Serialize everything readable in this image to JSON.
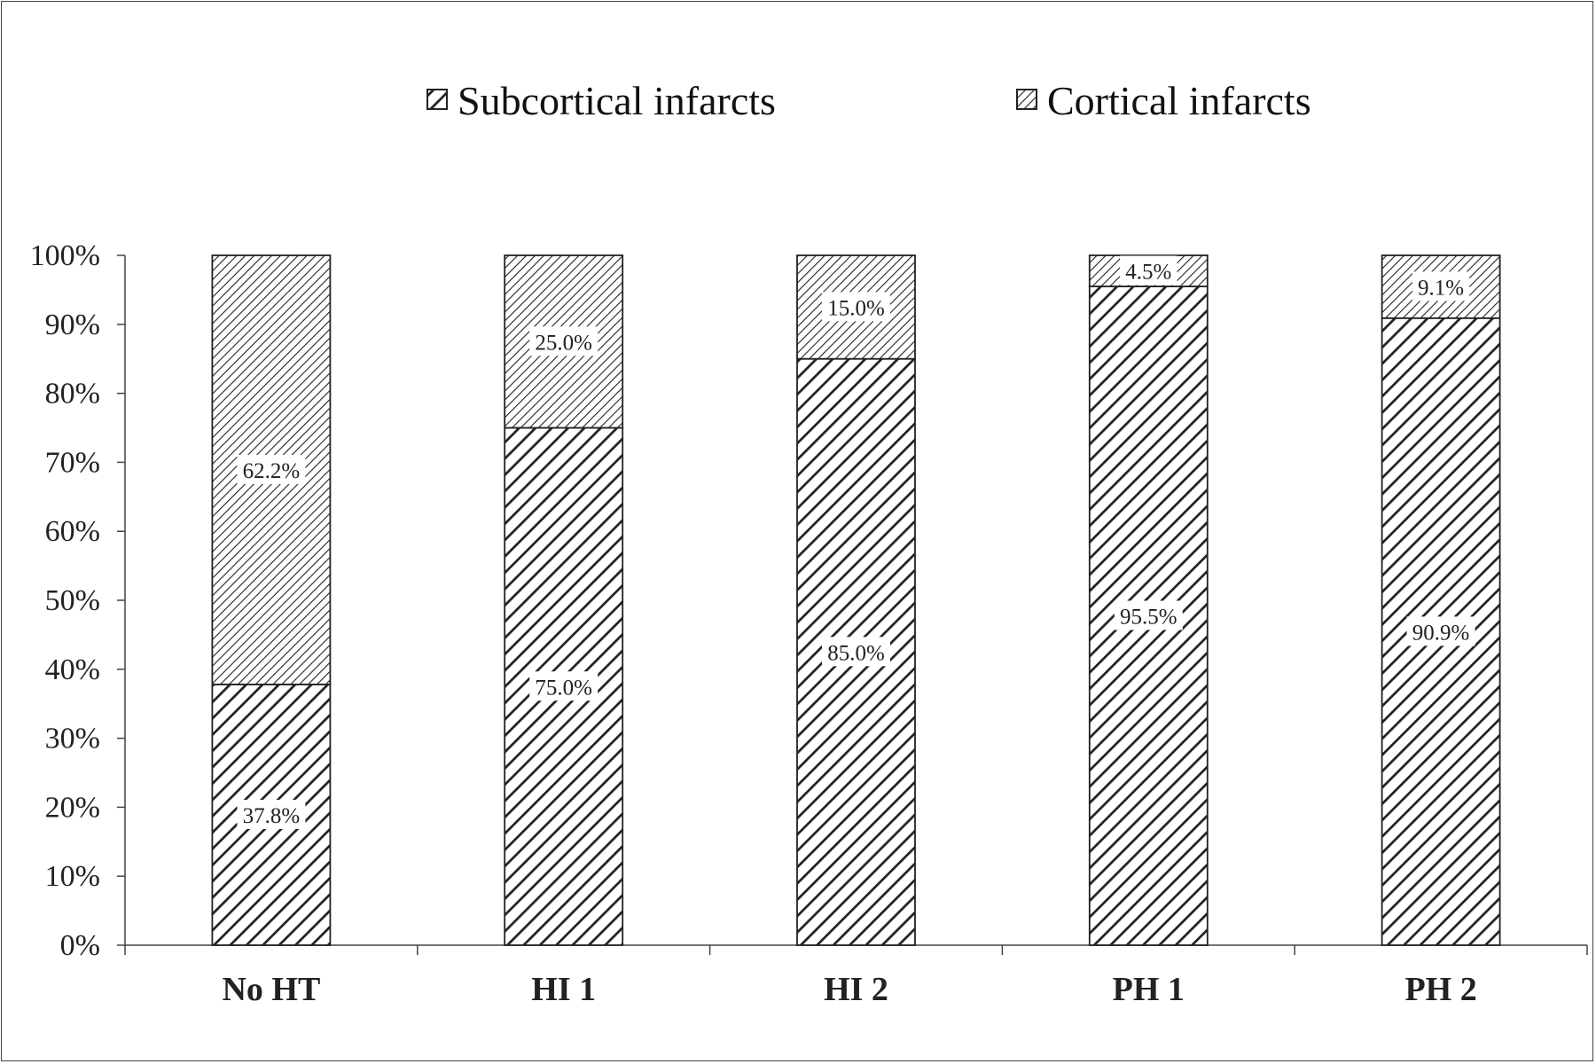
{
  "chart_data": {
    "type": "bar",
    "stacked": true,
    "categories": [
      "No HT",
      "HI 1",
      "HI 2",
      "PH 1",
      "PH 2"
    ],
    "series": [
      {
        "name": "Subcortical infarcts",
        "values": [
          37.8,
          75.0,
          85.0,
          95.5,
          90.9
        ],
        "labels": [
          "37.8%",
          "75.0%",
          "85.0%",
          "95.5%",
          "90.9%"
        ],
        "pattern": "wide-diagonal-hatch"
      },
      {
        "name": "Cortical infarcts",
        "values": [
          62.2,
          25.0,
          15.0,
          4.5,
          9.1
        ],
        "labels": [
          "62.2%",
          "25.0%",
          "15.0%",
          "4.5%",
          "9.1%"
        ],
        "pattern": "narrow-diagonal-hatch"
      }
    ],
    "ylim": [
      0,
      100
    ],
    "yticks": [
      "0%",
      "10%",
      "20%",
      "30%",
      "40%",
      "50%",
      "60%",
      "70%",
      "80%",
      "90%",
      "100%"
    ],
    "grid": false,
    "legend_position": "top"
  },
  "colors": {
    "hatch": "#222222",
    "text": "#222222",
    "label_background": "#ffffff"
  }
}
